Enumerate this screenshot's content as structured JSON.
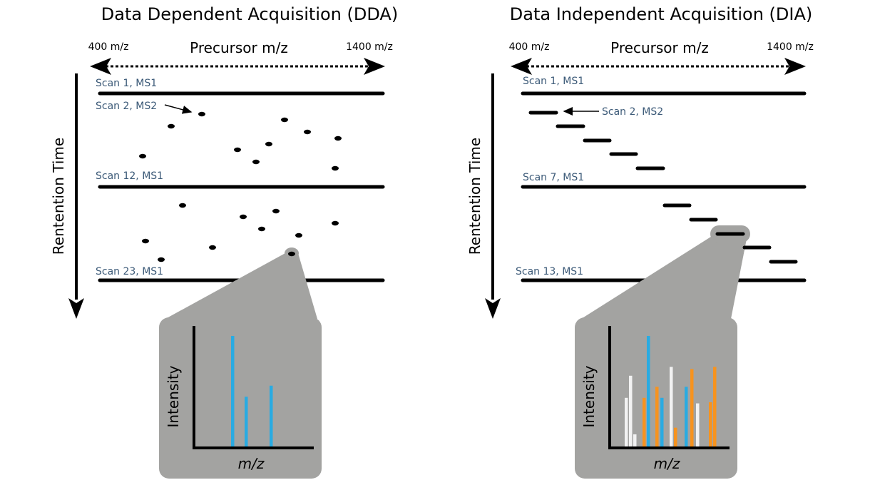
{
  "dda": {
    "title": "Data Dependent Acquisition (DDA)",
    "range_start": "400 m/z",
    "range_end": "1400 m/z",
    "precursor_label": "Precursor  m/z",
    "rt_label": "Rentention Time",
    "scans": [
      "Scan 1, MS1",
      "Scan 2, MS2",
      "Scan 12, MS1",
      "Scan 23, MS1"
    ],
    "inset": {
      "y_label": "Intensity",
      "x_label": "m/z",
      "peaks": [
        {
          "color": "blue",
          "height": 1.0
        },
        {
          "color": "blue",
          "height": 0.45
        },
        {
          "color": "blue",
          "height": 0.55
        }
      ]
    }
  },
  "dia": {
    "title": "Data Independent Acquisition (DIA)",
    "range_start": "400 m/z",
    "range_end": "1400 m/z",
    "precursor_label": "Precursor  m/z",
    "rt_label": "Rentention Time",
    "scans": [
      "Scan 1, MS1",
      "Scan 2, MS2",
      "Scan 7, MS1",
      "Scan 13, MS1"
    ],
    "inset": {
      "y_label": "Intensity",
      "x_label": "m/z",
      "peaks": [
        {
          "color": "white",
          "height": 0.44
        },
        {
          "color": "white",
          "height": 0.64
        },
        {
          "color": "white",
          "height": 0.11
        },
        {
          "color": "orange",
          "height": 0.44
        },
        {
          "color": "blue",
          "height": 1.0
        },
        {
          "color": "orange",
          "height": 0.54
        },
        {
          "color": "blue",
          "height": 0.44
        },
        {
          "color": "white",
          "height": 0.72
        },
        {
          "color": "orange",
          "height": 0.17
        },
        {
          "color": "blue",
          "height": 0.54
        },
        {
          "color": "orange",
          "height": 0.7
        },
        {
          "color": "white",
          "height": 0.39
        },
        {
          "color": "orange",
          "height": 0.4
        },
        {
          "color": "orange",
          "height": 0.72
        }
      ]
    }
  },
  "colors": {
    "blue": "#29abe2",
    "orange": "#f7931e",
    "white": "#f2f2f2",
    "inset_bg": "#a3a3a1",
    "scan_text": "#3c5a78"
  }
}
